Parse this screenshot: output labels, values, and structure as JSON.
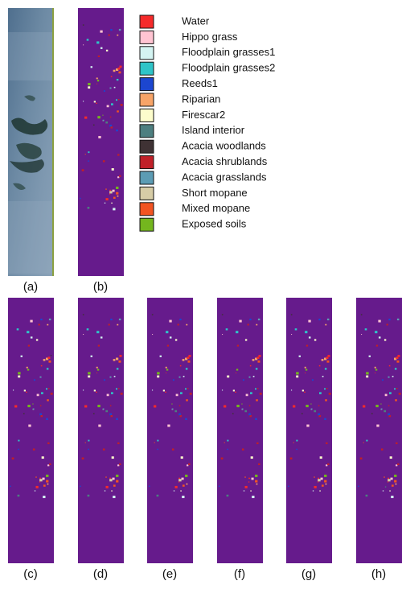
{
  "legend": [
    {
      "label": "Water",
      "color": "#f52a2a"
    },
    {
      "label": "Hippo grass",
      "color": "#ffc4d2"
    },
    {
      "label": "Floodplain grasses1",
      "color": "#d4f4f2"
    },
    {
      "label": "Floodplain grasses2",
      "color": "#2fc4c8"
    },
    {
      "label": "Reeds1",
      "color": "#1c46d0"
    },
    {
      "label": "Riparian",
      "color": "#f7a468"
    },
    {
      "label": "Firescar2",
      "color": "#fdfdcc"
    },
    {
      "label": "Island interior",
      "color": "#4d7f80"
    },
    {
      "label": "Acacia woodlands",
      "color": "#3f3234"
    },
    {
      "label": "Acacia shrublands",
      "color": "#c02028"
    },
    {
      "label": "Acacia grasslands",
      "color": "#5c9cb4"
    },
    {
      "label": "Short mopane",
      "color": "#d6cca6"
    },
    {
      "label": "Mixed mopane",
      "color": "#f25422"
    },
    {
      "label": "Exposed soils",
      "color": "#74b61e"
    }
  ],
  "panels": [
    "(a)",
    "(b)",
    "(c)",
    "(d)",
    "(e)",
    "(f)",
    "(g)",
    "(h)"
  ]
}
